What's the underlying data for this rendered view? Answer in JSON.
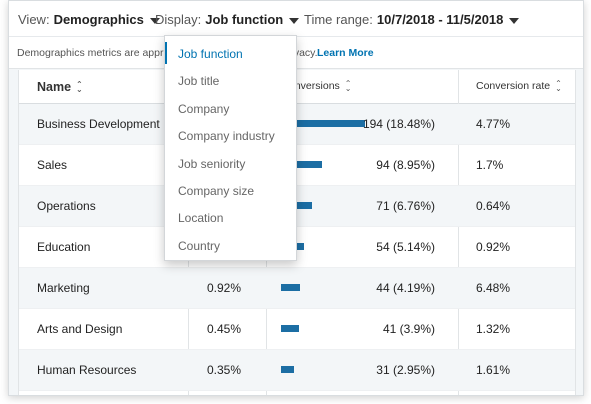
{
  "filters": {
    "view": {
      "label": "View:",
      "value": "Demographics"
    },
    "display": {
      "label": "Display:",
      "value": "Job function"
    },
    "time_range": {
      "label": "Time range:",
      "value": "10/7/2018 - 11/5/2018"
    }
  },
  "notice": {
    "text_start": "Demographics metrics are appr",
    "text_mid": "rivacy.",
    "link": "Learn More"
  },
  "table": {
    "headers": {
      "name": "Name",
      "conversions": "onversions",
      "conversion_rate": "Conversion rate"
    },
    "rows": [
      {
        "name": "Business Development",
        "share": "",
        "conversions": "194 (18.48%)",
        "conv_value": 194,
        "rate": "4.77%"
      },
      {
        "name": "Sales",
        "share": "",
        "conversions": "94 (8.95%)",
        "conv_value": 94,
        "rate": "1.7%"
      },
      {
        "name": "Operations",
        "share": "",
        "conversions": "71 (6.76%)",
        "conv_value": 71,
        "rate": "0.64%"
      },
      {
        "name": "Education",
        "share": "",
        "conversions": "54 (5.14%)",
        "conv_value": 54,
        "rate": "0.92%"
      },
      {
        "name": "Marketing",
        "share": "0.92%",
        "conversions": "44 (4.19%)",
        "conv_value": 44,
        "rate": "6.48%"
      },
      {
        "name": "Arts and Design",
        "share": "0.45%",
        "conversions": "41 (3.9%)",
        "conv_value": 41,
        "rate": "1.32%"
      },
      {
        "name": "Human Resources",
        "share": "0.35%",
        "conversions": "31 (2.95%)",
        "conv_value": 31,
        "rate": "1.61%"
      }
    ]
  },
  "dropdown": {
    "options": [
      "Job function",
      "Job title",
      "Company",
      "Company industry",
      "Job seniority",
      "Company size",
      "Location",
      "Country"
    ],
    "selected": "Job function"
  },
  "colors": {
    "accent": "#0073b1",
    "bar": "#1c6ea4",
    "row_shade": "#f3f6f8"
  }
}
